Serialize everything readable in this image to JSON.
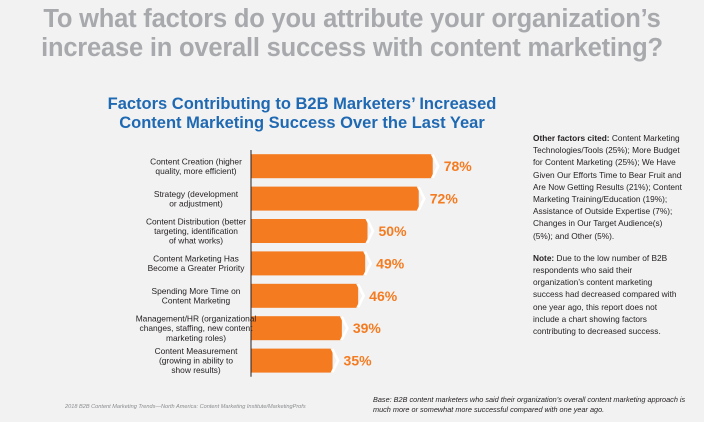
{
  "headline": {
    "line1": "To what factors do you attribute your organization’s",
    "line2": "increase in overall success with content marketing?"
  },
  "chart_data": {
    "type": "bar",
    "orientation": "horizontal",
    "title_line1": "Factors Contributing to B2B Marketers’ Increased",
    "title_line2": "Content Marketing Success Over the Last Year",
    "categories": [
      [
        "Content Creation (higher",
        "quality, more efficient)"
      ],
      [
        "Strategy (development",
        "or adjustment)"
      ],
      [
        "Content Distribution (better",
        "targeting, identification",
        "of what works)"
      ],
      [
        "Content Marketing Has",
        "Become a Greater Priority"
      ],
      [
        "Spending More Time on",
        "Content Marketing"
      ],
      [
        "Management/HR (organizational",
        "changes, staffing, new content",
        "marketing roles)"
      ],
      [
        "Content Measurement",
        "(growing in ability to",
        "show results)"
      ]
    ],
    "values": [
      78,
      72,
      50,
      49,
      46,
      39,
      35
    ],
    "value_labels": [
      "78%",
      "72%",
      "50%",
      "49%",
      "46%",
      "39%",
      "35%"
    ],
    "unit": "%",
    "bar_color": "#f47b20",
    "value_label_color": "#f47b20",
    "axis_color": "#231f20"
  },
  "sidebar": {
    "other_heading": "Other factors cited:",
    "other_text": " Content Marketing Technologies/Tools (25%); More Budget for Content Marketing (25%); We Have Given Our Efforts Time to Bear Fruit and Are Now Getting Results (21%); Content Marketing Training/Education (19%); Assistance of Outside Expertise (7%); Changes in Our Target Audience(s) (5%); and Other (5%).",
    "note_heading": "Note:",
    "note_text": " Due to the low number of B2B respondents who said their organization’s content marketing success had decreased compared with one year ago, this report does not include a chart showing factors contributing to decreased success."
  },
  "footer": {
    "source": "2018 B2B Content Marketing Trends—North America: Content Marketing Institute/MarketingProfs",
    "base": "Base: B2B content marketers who said their organization’s overall content marketing approach is much more or somewhat more successful compared with one year ago."
  }
}
